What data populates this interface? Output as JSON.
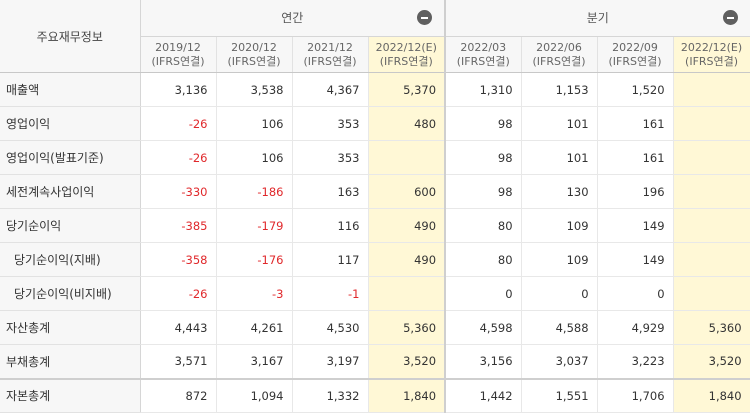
{
  "header": {
    "corner_label": "주요재무정보",
    "annual_label": "연간",
    "quarterly_label": "분기",
    "annual_toggle_icon": "minus-icon",
    "quarterly_toggle_icon": "minus-icon"
  },
  "periods": [
    {
      "date": "2019/12",
      "basis": "(IFRS연결)",
      "estimate": false
    },
    {
      "date": "2020/12",
      "basis": "(IFRS연결)",
      "estimate": false
    },
    {
      "date": "2021/12",
      "basis": "(IFRS연결)",
      "estimate": false
    },
    {
      "date": "2022/12(E)",
      "basis": "(IFRS연결)",
      "estimate": true
    },
    {
      "date": "2022/03",
      "basis": "(IFRS연결)",
      "estimate": false
    },
    {
      "date": "2022/06",
      "basis": "(IFRS연결)",
      "estimate": false
    },
    {
      "date": "2022/09",
      "basis": "(IFRS연결)",
      "estimate": false
    },
    {
      "date": "2022/12(E)",
      "basis": "(IFRS연결)",
      "estimate": true
    }
  ],
  "rows": [
    {
      "label": "매출액",
      "sub": false,
      "values": [
        "3,136",
        "3,538",
        "4,367",
        "5,370",
        "1,310",
        "1,153",
        "1,520",
        ""
      ]
    },
    {
      "label": "영업이익",
      "sub": false,
      "values": [
        "-26",
        "106",
        "353",
        "480",
        "98",
        "101",
        "161",
        ""
      ]
    },
    {
      "label": "영업이익(발표기준)",
      "sub": false,
      "values": [
        "-26",
        "106",
        "353",
        "",
        "98",
        "101",
        "161",
        ""
      ]
    },
    {
      "label": "세전계속사업이익",
      "sub": false,
      "values": [
        "-330",
        "-186",
        "163",
        "600",
        "98",
        "130",
        "196",
        ""
      ]
    },
    {
      "label": "당기순이익",
      "sub": false,
      "values": [
        "-385",
        "-179",
        "116",
        "490",
        "80",
        "109",
        "149",
        ""
      ]
    },
    {
      "label": "당기순이익(지배)",
      "sub": true,
      "values": [
        "-358",
        "-176",
        "117",
        "490",
        "80",
        "109",
        "149",
        ""
      ]
    },
    {
      "label": "당기순이익(비지배)",
      "sub": true,
      "values": [
        "-26",
        "-3",
        "-1",
        "",
        "0",
        "0",
        "0",
        ""
      ]
    },
    {
      "label": "자산총계",
      "sub": false,
      "values": [
        "4,443",
        "4,261",
        "4,530",
        "5,360",
        "4,598",
        "4,588",
        "4,929",
        "5,360"
      ]
    },
    {
      "label": "부채총계",
      "sub": false,
      "values": [
        "3,571",
        "3,167",
        "3,197",
        "3,520",
        "3,156",
        "3,037",
        "3,223",
        "3,520"
      ]
    },
    {
      "label": "자본총계",
      "sub": false,
      "values": [
        "872",
        "1,094",
        "1,332",
        "1,840",
        "1,442",
        "1,551",
        "1,706",
        "1,840"
      ]
    }
  ],
  "colors": {
    "negative": "#e0282b",
    "estimate_bg": "#fff8d6",
    "header_bg": "#f7f7f7"
  }
}
